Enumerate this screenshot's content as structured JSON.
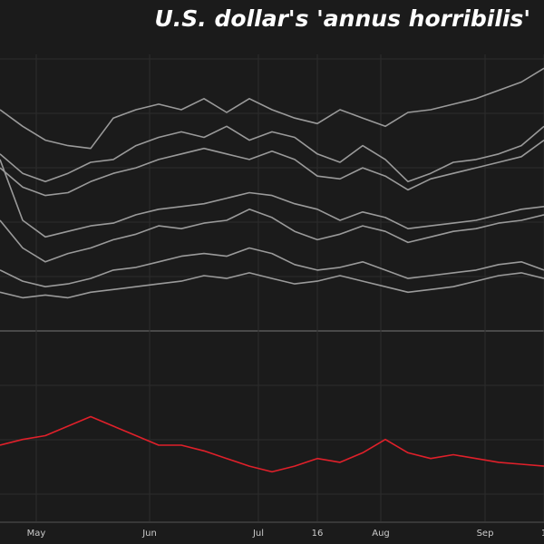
{
  "chart_data": [
    {
      "type": "line",
      "title": "U.S. dollar's 'annus horribilis'",
      "x": [
        0,
        5,
        10,
        15,
        20,
        25,
        30,
        35,
        40,
        45,
        50,
        55,
        60,
        65,
        70,
        75,
        80,
        85,
        90,
        95,
        100,
        105,
        110,
        115,
        120
      ],
      "xlim": [
        0,
        120
      ],
      "ylim": [
        0,
        100
      ],
      "grid": true,
      "series": [
        {
          "color": "#9a9a9a",
          "values": [
            80,
            74,
            69,
            67,
            66,
            77,
            80,
            82,
            80,
            84,
            79,
            84,
            80,
            77,
            75,
            80,
            77,
            74,
            79,
            80,
            82,
            84,
            87,
            90,
            95
          ]
        },
        {
          "color": "#9a9a9a",
          "values": [
            64,
            57,
            54,
            57,
            61,
            62,
            67,
            70,
            72,
            70,
            74,
            69,
            72,
            70,
            64,
            61,
            67,
            62,
            54,
            57,
            61,
            62,
            64,
            67,
            74
          ]
        },
        {
          "color": "#9a9a9a",
          "values": [
            59,
            52,
            49,
            50,
            54,
            57,
            59,
            62,
            64,
            66,
            64,
            62,
            65,
            62,
            56,
            55,
            59,
            56,
            51,
            55,
            57,
            59,
            61,
            63,
            69
          ]
        },
        {
          "color": "#9a9a9a",
          "values": [
            62,
            40,
            34,
            36,
            38,
            39,
            42,
            44,
            45,
            46,
            48,
            50,
            49,
            46,
            44,
            40,
            43,
            41,
            37,
            38,
            39,
            40,
            42,
            44,
            45
          ]
        },
        {
          "color": "#9a9a9a",
          "values": [
            40,
            30,
            25,
            28,
            30,
            33,
            35,
            38,
            37,
            39,
            40,
            44,
            41,
            36,
            33,
            35,
            38,
            36,
            32,
            34,
            36,
            37,
            39,
            40,
            42
          ]
        },
        {
          "color": "#9a9a9a",
          "values": [
            22,
            18,
            16,
            17,
            19,
            22,
            23,
            25,
            27,
            28,
            27,
            30,
            28,
            24,
            22,
            23,
            25,
            22,
            19,
            20,
            21,
            22,
            24,
            25,
            22
          ]
        },
        {
          "color": "#9a9a9a",
          "values": [
            14,
            12,
            13,
            12,
            14,
            15,
            16,
            17,
            18,
            20,
            19,
            21,
            19,
            17,
            18,
            20,
            18,
            16,
            14,
            15,
            16,
            18,
            20,
            21,
            19
          ]
        }
      ]
    },
    {
      "type": "line",
      "x": [
        0,
        5,
        10,
        15,
        20,
        25,
        30,
        35,
        40,
        45,
        50,
        55,
        60,
        65,
        70,
        75,
        80,
        85,
        90,
        95,
        100,
        105,
        110,
        115,
        120
      ],
      "xlim": [
        0,
        120
      ],
      "ylim": [
        0,
        100
      ],
      "grid": true,
      "xticks": [
        {
          "value": 8,
          "label": "May"
        },
        {
          "value": 33,
          "label": "Jun"
        },
        {
          "value": 57,
          "label": "Jul"
        },
        {
          "value": 70,
          "label": "16"
        },
        {
          "value": 84,
          "label": "Aug"
        },
        {
          "value": 107,
          "label": "Sep"
        },
        {
          "value": 120,
          "label": "1"
        }
      ],
      "series": [
        {
          "color": "#e0202a",
          "values": [
            40,
            43,
            45,
            50,
            55,
            50,
            45,
            40,
            40,
            37,
            33,
            29,
            26,
            29,
            33,
            31,
            36,
            43,
            36,
            33,
            35,
            33,
            31,
            30,
            29
          ]
        }
      ]
    }
  ]
}
